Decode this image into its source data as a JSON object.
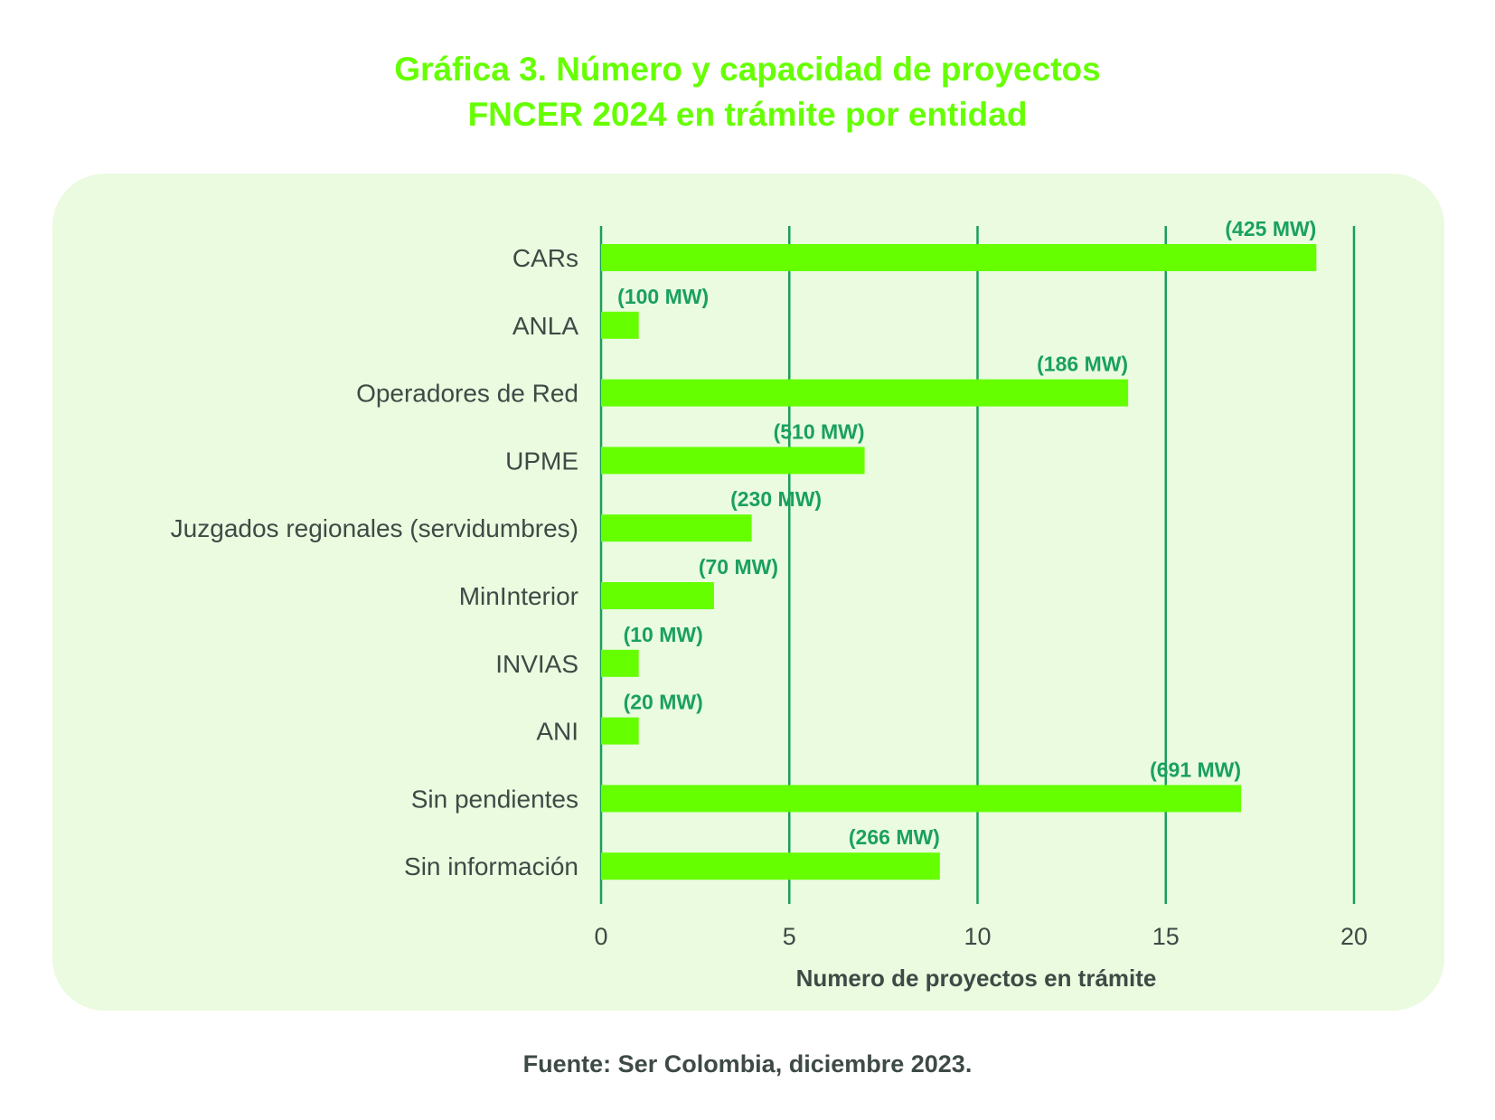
{
  "title_lines": [
    "Gráfica 3. Número y capacidad de proyectos",
    "FNCER 2024 en trámite por entidad"
  ],
  "source": "Fuente: Ser Colombia, diciembre 2023.",
  "colors": {
    "title": "#66ff00",
    "bar": "#66ff00",
    "grid": "#1a9e5a",
    "data_label": "#1aa060",
    "text": "#3e4a45",
    "panel": "#eafbe0"
  },
  "chart_data": {
    "type": "bar",
    "orientation": "horizontal",
    "xlabel": "Numero de proyectos en trámite",
    "xlim": [
      0,
      20
    ],
    "xticks": [
      0,
      5,
      10,
      15,
      20
    ],
    "grid": true,
    "categories": [
      "CARs",
      "ANLA",
      "Operadores de Red",
      "UPME",
      "Juzgados regionales (servidumbres)",
      "MinInterior",
      "INVIAS",
      "ANI",
      "Sin pendientes",
      "Sin información"
    ],
    "values": [
      19,
      1,
      14,
      7,
      4,
      3,
      1,
      1,
      17,
      9
    ],
    "data_labels": [
      "(425 MW)",
      "(100 MW)",
      "(186 MW)",
      "(510 MW)",
      "(230 MW)",
      "(70 MW)",
      "(10 MW)",
      "(20 MW)",
      "(691 MW)",
      "(266 MW)"
    ]
  }
}
